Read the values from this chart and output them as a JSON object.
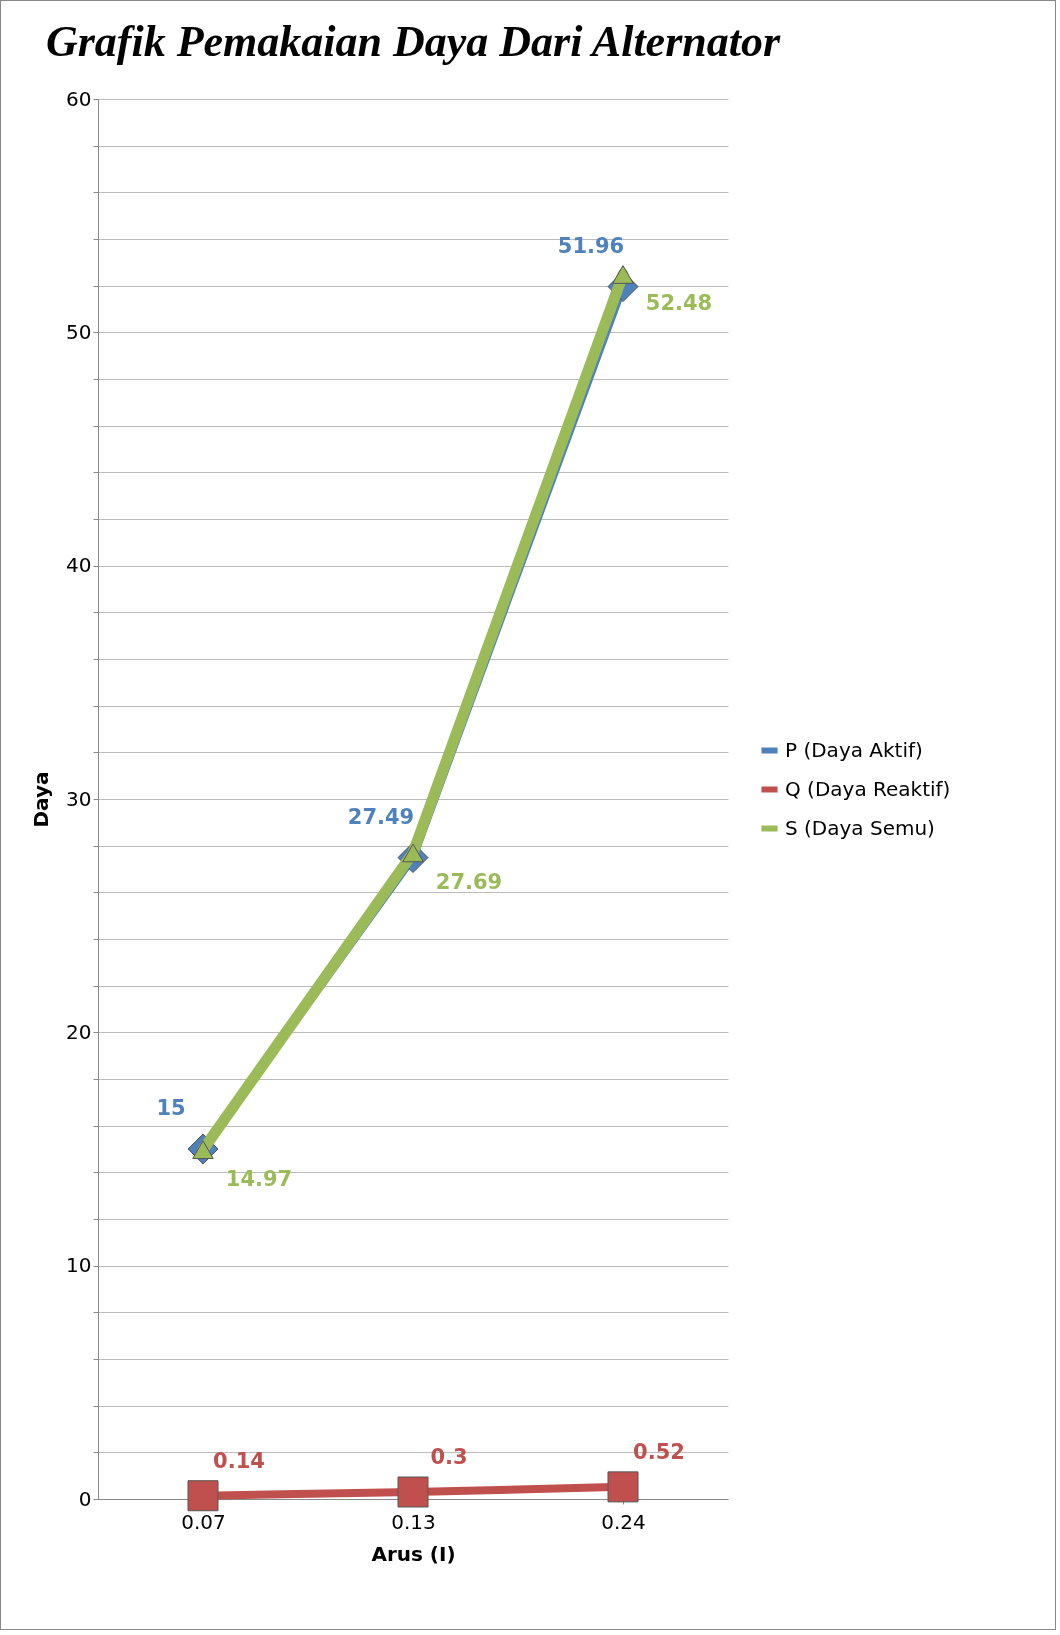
{
  "chart_data": {
    "type": "line",
    "title": "Grafik Pemakaian Daya Dari Alternator",
    "xlabel": "Arus (I)",
    "ylabel": "Daya",
    "categories": [
      "0.07",
      "0.13",
      "0.24"
    ],
    "series": [
      {
        "name": "P (Daya Aktif)",
        "color": "#4f81bd",
        "values": [
          15,
          27.49,
          51.96
        ],
        "marker": "diamond"
      },
      {
        "name": "Q (Daya Reaktif)",
        "color": "#c0504d",
        "values": [
          0.14,
          0.3,
          0.52
        ],
        "marker": "square"
      },
      {
        "name": "S (Daya Semu)",
        "color": "#9bbb59",
        "values": [
          14.97,
          27.69,
          52.48
        ],
        "marker": "triangle"
      }
    ],
    "ylim": [
      0,
      60
    ],
    "yticks": [
      0,
      {
        "value": 2,
        "label": null
      },
      {
        "value": 4,
        "label": null
      },
      {
        "value": 6,
        "label": null
      },
      {
        "value": 8,
        "label": null
      },
      10,
      {
        "value": 12,
        "label": null
      },
      {
        "value": 14,
        "label": null
      },
      {
        "value": 16,
        "label": null
      },
      {
        "value": 18,
        "label": null
      },
      20,
      {
        "value": 22,
        "label": null
      },
      {
        "value": 24,
        "label": null
      },
      {
        "value": 26,
        "label": null
      },
      {
        "value": 28,
        "label": null
      },
      30,
      {
        "value": 32,
        "label": null
      },
      {
        "value": 34,
        "label": null
      },
      {
        "value": 36,
        "label": null
      },
      {
        "value": 38,
        "label": null
      },
      40,
      {
        "value": 42,
        "label": null
      },
      {
        "value": 44,
        "label": null
      },
      {
        "value": 46,
        "label": null
      },
      {
        "value": 48,
        "label": null
      },
      50,
      {
        "value": 52,
        "label": null
      },
      {
        "value": 54,
        "label": null
      },
      {
        "value": 56,
        "label": null
      },
      {
        "value": 58,
        "label": null
      },
      60
    ],
    "grid": "y",
    "legend": "right",
    "data_labels": true
  }
}
